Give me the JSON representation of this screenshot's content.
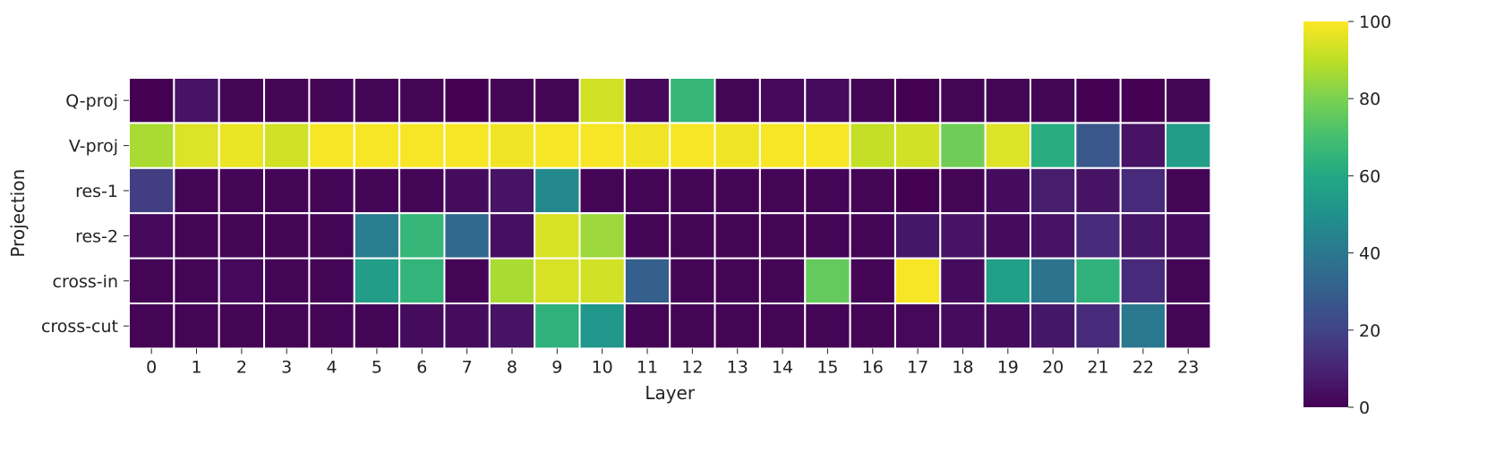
{
  "chart_data": {
    "type": "heatmap",
    "title": "",
    "xlabel": "Layer",
    "ylabel": "Projection",
    "x": [
      "0",
      "1",
      "2",
      "3",
      "4",
      "5",
      "6",
      "7",
      "8",
      "9",
      "10",
      "11",
      "12",
      "13",
      "14",
      "15",
      "16",
      "17",
      "18",
      "19",
      "20",
      "21",
      "22",
      "23"
    ],
    "y": [
      "Q-proj",
      "V-proj",
      "res-1",
      "res-2",
      "cross-in",
      "cross-cut"
    ],
    "values": [
      [
        0,
        5,
        1,
        1,
        1,
        1,
        1,
        0,
        1,
        1,
        93,
        2,
        66,
        1,
        2,
        3,
        1,
        0,
        1,
        1,
        1,
        0,
        0,
        1
      ],
      [
        87,
        95,
        97,
        93,
        99,
        99,
        99,
        99,
        98,
        99,
        99,
        98,
        99,
        98,
        99,
        99,
        91,
        93,
        78,
        95,
        62,
        27,
        5,
        55
      ],
      [
        18,
        1,
        1,
        1,
        1,
        1,
        1,
        3,
        5,
        47,
        1,
        1,
        1,
        1,
        1,
        1,
        1,
        0,
        1,
        3,
        8,
        5,
        12,
        1
      ],
      [
        2,
        1,
        1,
        1,
        1,
        42,
        66,
        34,
        4,
        94,
        85,
        1,
        1,
        1,
        1,
        1,
        1,
        6,
        5,
        3,
        5,
        12,
        6,
        3
      ],
      [
        1,
        1,
        2,
        1,
        1,
        55,
        65,
        1,
        87,
        94,
        93,
        30,
        1,
        1,
        1,
        76,
        1,
        99,
        3,
        56,
        38,
        64,
        12,
        1
      ],
      [
        1,
        1,
        1,
        1,
        1,
        1,
        3,
        3,
        5,
        64,
        52,
        1,
        1,
        1,
        1,
        1,
        1,
        2,
        3,
        3,
        6,
        12,
        40,
        1
      ]
    ],
    "colorbar": {
      "colormap": "viridis",
      "range": [
        0,
        100
      ],
      "ticks": [
        "0",
        "20",
        "40",
        "60",
        "80",
        "100"
      ]
    }
  }
}
